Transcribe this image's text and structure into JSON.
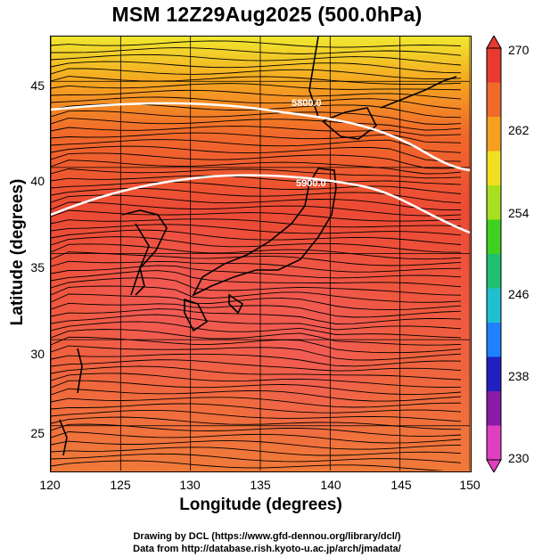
{
  "title": "MSM 12Z29Aug2025 (500.0hPa)",
  "axes": {
    "xlabel": "Longitude (degrees)",
    "ylabel": "Latitude  (degrees)",
    "xticks": [
      "120",
      "125",
      "130",
      "135",
      "140",
      "145",
      "150"
    ],
    "yticks": [
      "45",
      "40",
      "35",
      "30",
      "25"
    ],
    "xlim": [
      120,
      150
    ],
    "ylim": [
      22.4,
      47.6
    ]
  },
  "contour_labels": [
    "5800.0",
    "5900.0"
  ],
  "colorbar": {
    "ticks": [
      "270",
      "262",
      "254",
      "246",
      "238",
      "230"
    ],
    "range": [
      230,
      270
    ],
    "colors": [
      "#e040c0",
      "#8a1aa8",
      "#2020c0",
      "#2080ff",
      "#20c0d0",
      "#20c070",
      "#40d020",
      "#a8e020",
      "#f0e020",
      "#f5a020",
      "#f06a2a",
      "#e83a30"
    ]
  },
  "credits": {
    "line1": "Drawing by DCL (https://www.gfd-dennou.org/library/dcl/)",
    "line2": "Data from http://database.rish.kyoto-u.ac.jp/arch/jmadata/"
  }
}
